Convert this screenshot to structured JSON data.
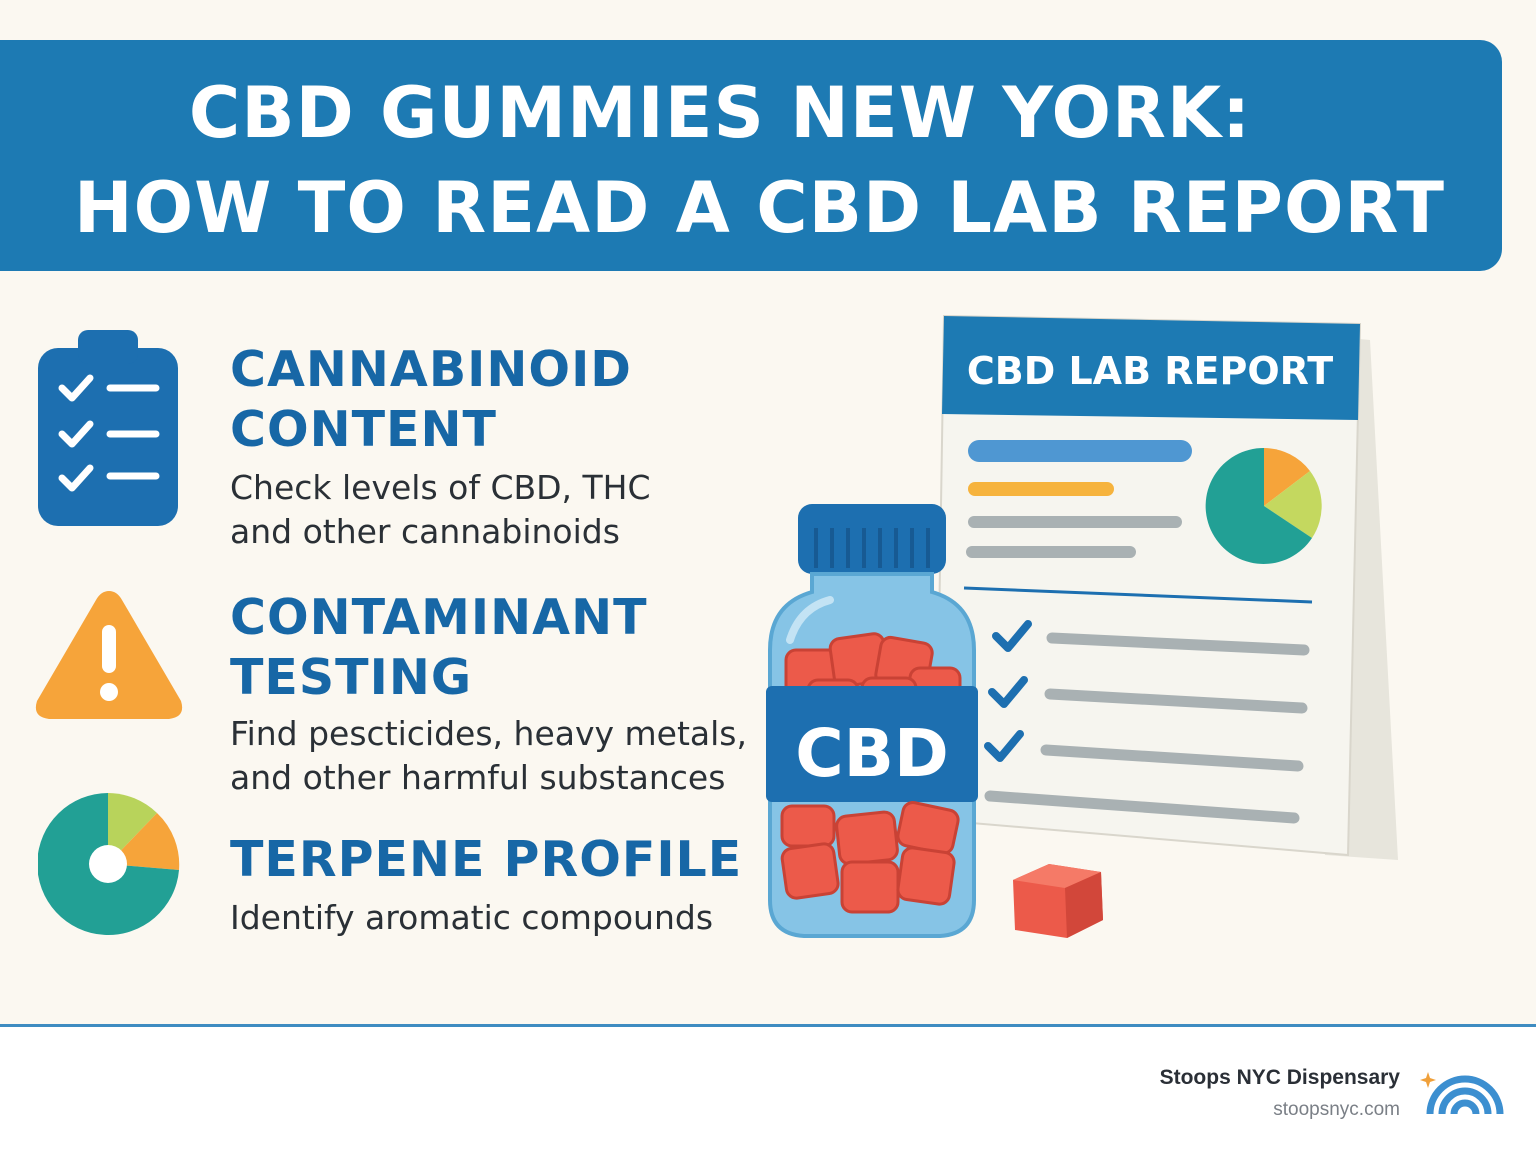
{
  "banner": {
    "line1": "CBD GUMMIES NEW YORK:",
    "line2": "HOW TO READ A CBD LAB REPORT"
  },
  "features": [
    {
      "icon": "clipboard-checklist-icon",
      "title": "CANNABINOID\nCONTENT",
      "description": "Check levels of CBD, THC\nand other cannabinoids"
    },
    {
      "icon": "warning-triangle-icon",
      "title": "CONTAMINANT\nTESTING",
      "description": "Find pescticides, heavy metals,\nand other harmful substances"
    },
    {
      "icon": "donut-chart-icon",
      "title": "TERPENE PROFILE",
      "description": "Identify aromatic compounds"
    }
  ],
  "report": {
    "title": "CBD LAB REPORT"
  },
  "bottle": {
    "label": "CBD"
  },
  "footer": {
    "brand": "Stoops NYC Dispensary",
    "url": "stoopsnyc.com"
  },
  "colors": {
    "primary_blue": "#1d7ab3",
    "title_blue": "#1767a6",
    "orange": "#f6a43a",
    "teal": "#22a095",
    "lime": "#b8d35b",
    "gummy_red": "#ec5a4a"
  }
}
